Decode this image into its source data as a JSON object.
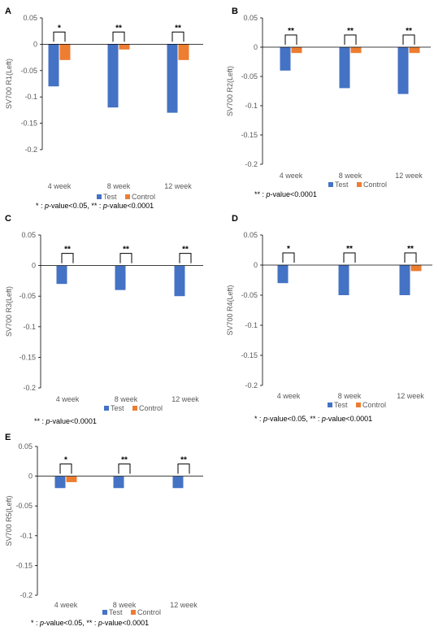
{
  "colors": {
    "test": "#4472c4",
    "control": "#ed7d31"
  },
  "chart_data": [
    {
      "panel": "A",
      "type": "bar",
      "categories": [
        "4 week",
        "8 week",
        "12 week"
      ],
      "series": [
        {
          "name": "Test",
          "values": [
            -0.08,
            -0.12,
            -0.13
          ]
        },
        {
          "name": "Control",
          "values": [
            -0.03,
            -0.01,
            -0.03
          ]
        }
      ],
      "ylabel": "SV700 R1(Left)",
      "ylim": [
        -0.2,
        0.05
      ],
      "yticks": [
        "0.05",
        "0",
        "-0.05",
        "-0.1",
        "-0.15",
        "-0.2"
      ],
      "significance": [
        "*",
        "**",
        "**"
      ],
      "legend_position": "bottom",
      "footnote": [
        {
          "text": "* : ",
          "italic": false
        },
        {
          "text": "p",
          "italic": true
        },
        {
          "text": "-value<0.05, ** : ",
          "italic": false
        },
        {
          "text": "p",
          "italic": true
        },
        {
          "text": "-value<0.0001",
          "italic": false
        }
      ]
    },
    {
      "panel": "B",
      "type": "bar",
      "categories": [
        "4 week",
        "8 week",
        "12 week"
      ],
      "series": [
        {
          "name": "Test",
          "values": [
            -0.04,
            -0.07,
            -0.08
          ]
        },
        {
          "name": "Control",
          "values": [
            -0.01,
            -0.01,
            -0.01
          ]
        }
      ],
      "ylabel": "SV700 R2(Left)",
      "ylim": [
        -0.2,
        0.05
      ],
      "yticks": [
        "0.05",
        "0",
        "-0.05",
        "-0.1",
        "-0.15",
        "-0.2"
      ],
      "significance": [
        "**",
        "**",
        "**"
      ],
      "legend_position": "bottom",
      "footnote": [
        {
          "text": "** : ",
          "italic": false
        },
        {
          "text": "p",
          "italic": true
        },
        {
          "text": "-value<0.0001",
          "italic": false
        }
      ]
    },
    {
      "panel": "C",
      "type": "bar",
      "categories": [
        "4 week",
        "8 week",
        "12 week"
      ],
      "series": [
        {
          "name": "Test",
          "values": [
            -0.03,
            -0.04,
            -0.05
          ]
        },
        {
          "name": "Control",
          "values": [
            0,
            0,
            0
          ]
        }
      ],
      "ylabel": "SV700 R3(Left)",
      "ylim": [
        -0.2,
        0.05
      ],
      "yticks": [
        "0.05",
        "0",
        "-0.05",
        "-0.1",
        "-0.15",
        "-0.2"
      ],
      "significance": [
        "**",
        "**",
        "**"
      ],
      "legend_position": "bottom",
      "footnote": [
        {
          "text": "** : ",
          "italic": false
        },
        {
          "text": "p",
          "italic": true
        },
        {
          "text": "-value<0.0001",
          "italic": false
        }
      ]
    },
    {
      "panel": "D",
      "type": "bar",
      "categories": [
        "4 week",
        "8 week",
        "12 week"
      ],
      "series": [
        {
          "name": "Test",
          "values": [
            -0.03,
            -0.05,
            -0.05
          ]
        },
        {
          "name": "Control",
          "values": [
            0,
            0,
            -0.01
          ]
        }
      ],
      "ylabel": "SV700 R4(Left)",
      "ylim": [
        -0.2,
        0.05
      ],
      "yticks": [
        "0.05",
        "0",
        "-0.05",
        "-0.1",
        "-0.15",
        "-0.2"
      ],
      "significance": [
        "*",
        "**",
        "**"
      ],
      "legend_position": "bottom",
      "footnote": [
        {
          "text": "* : ",
          "italic": false
        },
        {
          "text": "p",
          "italic": true
        },
        {
          "text": "-value<0.05, ** : ",
          "italic": false
        },
        {
          "text": "p",
          "italic": true
        },
        {
          "text": "-value<0.0001",
          "italic": false
        }
      ]
    },
    {
      "panel": "E",
      "type": "bar",
      "categories": [
        "4 week",
        "8 week",
        "12 week"
      ],
      "series": [
        {
          "name": "Test",
          "values": [
            -0.02,
            -0.02,
            -0.02
          ]
        },
        {
          "name": "Control",
          "values": [
            -0.01,
            0,
            0
          ]
        }
      ],
      "ylabel": "SV700 R5(Left)",
      "ylim": [
        -0.2,
        0.05
      ],
      "yticks": [
        "0.05",
        "0",
        "-0.05",
        "-0.1",
        "-0.15",
        "-0.2"
      ],
      "significance": [
        "*",
        "**",
        "**"
      ],
      "legend_position": "bottom",
      "footnote": [
        {
          "text": "* : ",
          "italic": false
        },
        {
          "text": "p",
          "italic": true
        },
        {
          "text": "-value<0.05, ** : ",
          "italic": false
        },
        {
          "text": "p",
          "italic": true
        },
        {
          "text": "-value<0.0001",
          "italic": false
        }
      ]
    }
  ]
}
